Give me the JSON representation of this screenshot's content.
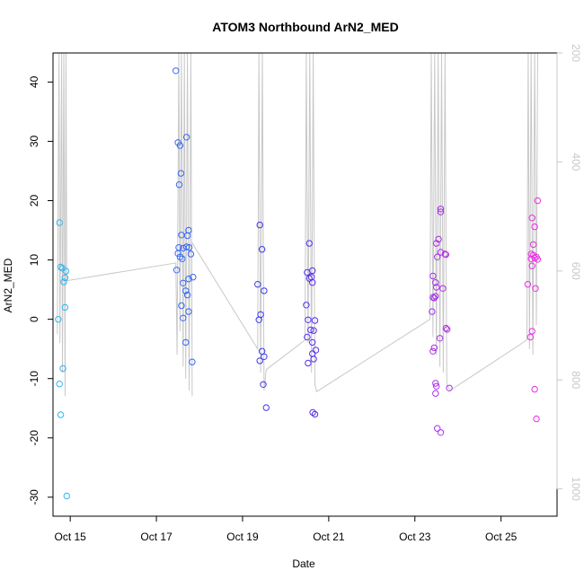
{
  "chart_data": {
    "type": "scatter",
    "title": "ATOM3 Northbound ArN2_MED",
    "xlabel": "Date",
    "ylabel": "ArN2_MED",
    "x_ticks": [
      "Oct 15",
      "Oct 17",
      "Oct 19",
      "Oct 21",
      "Oct 23",
      "Oct 25"
    ],
    "y_ticks": [
      "-30",
      "-20",
      "-10",
      "0",
      "10",
      "20",
      "30",
      "40"
    ],
    "y2_ticks": [
      "200",
      "400",
      "600",
      "800",
      "1000"
    ],
    "xlim_days": [
      14.6,
      26.3
    ],
    "ylim": [
      -33.2,
      44.9
    ],
    "y2lim": [
      1050,
      200
    ],
    "grid": false,
    "secondary_series_color": "#c8c8c8",
    "point_color_start": "#2fb8f2",
    "point_color_mid": "#3f2ff0",
    "point_color_end": "#ef2fe6",
    "points": [
      [
        14.75,
        16.3
      ],
      [
        14.78,
        8.8
      ],
      [
        14.82,
        8.6
      ],
      [
        14.85,
        6.3
      ],
      [
        14.88,
        7.0
      ],
      [
        14.9,
        8.1
      ],
      [
        14.88,
        2.0
      ],
      [
        14.72,
        0.0
      ],
      [
        14.75,
        -10.9
      ],
      [
        14.83,
        -8.3
      ],
      [
        14.78,
        -16.1
      ],
      [
        14.92,
        -29.8
      ],
      [
        17.45,
        41.9
      ],
      [
        17.5,
        29.8
      ],
      [
        17.55,
        29.3
      ],
      [
        17.7,
        30.7
      ],
      [
        17.57,
        24.6
      ],
      [
        17.53,
        22.7
      ],
      [
        17.58,
        14.2
      ],
      [
        17.75,
        15.0
      ],
      [
        17.72,
        14.1
      ],
      [
        17.52,
        12.1
      ],
      [
        17.62,
        12.0
      ],
      [
        17.7,
        12.2
      ],
      [
        17.76,
        12.1
      ],
      [
        17.5,
        11.1
      ],
      [
        17.55,
        10.5
      ],
      [
        17.6,
        10.2
      ],
      [
        17.8,
        11.0
      ],
      [
        17.47,
        8.3
      ],
      [
        17.85,
        7.1
      ],
      [
        17.75,
        6.8
      ],
      [
        17.62,
        6.1
      ],
      [
        17.68,
        4.8
      ],
      [
        17.72,
        4.1
      ],
      [
        17.58,
        2.3
      ],
      [
        17.75,
        1.3
      ],
      [
        17.62,
        0.2
      ],
      [
        17.68,
        -3.9
      ],
      [
        17.83,
        -7.2
      ],
      [
        19.4,
        15.9
      ],
      [
        19.45,
        11.8
      ],
      [
        19.35,
        5.9
      ],
      [
        19.5,
        4.8
      ],
      [
        19.42,
        0.8
      ],
      [
        19.38,
        -0.1
      ],
      [
        19.45,
        -5.4
      ],
      [
        19.5,
        -6.3
      ],
      [
        19.4,
        -7.0
      ],
      [
        19.48,
        -11.0
      ],
      [
        19.55,
        -14.9
      ],
      [
        20.55,
        12.8
      ],
      [
        20.5,
        7.9
      ],
      [
        20.62,
        8.2
      ],
      [
        20.6,
        7.1
      ],
      [
        20.55,
        6.9
      ],
      [
        20.62,
        6.2
      ],
      [
        20.48,
        2.4
      ],
      [
        20.52,
        -0.1
      ],
      [
        20.68,
        -0.2
      ],
      [
        20.58,
        -1.8
      ],
      [
        20.65,
        -1.9
      ],
      [
        20.62,
        -3.9
      ],
      [
        20.5,
        -3.0
      ],
      [
        20.7,
        -5.2
      ],
      [
        20.62,
        -5.8
      ],
      [
        20.65,
        -6.7
      ],
      [
        20.52,
        -7.4
      ],
      [
        20.63,
        -15.7
      ],
      [
        20.68,
        -16.0
      ],
      [
        23.6,
        18.6
      ],
      [
        23.6,
        18.1
      ],
      [
        23.55,
        13.5
      ],
      [
        23.5,
        12.8
      ],
      [
        23.6,
        11.3
      ],
      [
        23.7,
        11.0
      ],
      [
        23.72,
        10.9
      ],
      [
        23.52,
        10.5
      ],
      [
        23.42,
        7.3
      ],
      [
        23.48,
        6.2
      ],
      [
        23.5,
        5.4
      ],
      [
        23.65,
        5.2
      ],
      [
        23.45,
        3.6
      ],
      [
        23.42,
        3.7
      ],
      [
        23.48,
        3.9
      ],
      [
        23.4,
        1.3
      ],
      [
        23.72,
        -1.5
      ],
      [
        23.75,
        -1.7
      ],
      [
        23.58,
        -3.2
      ],
      [
        23.45,
        -4.8
      ],
      [
        23.42,
        -5.4
      ],
      [
        23.48,
        -10.8
      ],
      [
        23.5,
        -11.3
      ],
      [
        23.8,
        -11.6
      ],
      [
        23.48,
        -12.5
      ],
      [
        23.52,
        -18.4
      ],
      [
        23.6,
        -19.1
      ],
      [
        25.85,
        20.0
      ],
      [
        25.72,
        17.1
      ],
      [
        25.78,
        15.6
      ],
      [
        25.75,
        12.6
      ],
      [
        25.7,
        11.0
      ],
      [
        25.75,
        10.8
      ],
      [
        25.82,
        10.5
      ],
      [
        25.78,
        10.3
      ],
      [
        25.7,
        10.2
      ],
      [
        25.85,
        10.1
      ],
      [
        25.72,
        9.0
      ],
      [
        25.62,
        5.9
      ],
      [
        25.8,
        5.2
      ],
      [
        25.72,
        -2.0
      ],
      [
        25.68,
        -3.0
      ],
      [
        25.78,
        -11.8
      ],
      [
        25.82,
        -16.8
      ]
    ],
    "line": [
      [
        14.7,
        -2.5
      ],
      [
        14.74,
        44.9
      ],
      [
        14.76,
        -4
      ],
      [
        14.8,
        44.9
      ],
      [
        14.82,
        -9
      ],
      [
        14.85,
        44.9
      ],
      [
        14.88,
        -13
      ],
      [
        14.9,
        44.9
      ],
      [
        14.92,
        6.5
      ],
      [
        17.45,
        9.5
      ],
      [
        17.48,
        -6
      ],
      [
        17.52,
        44.9
      ],
      [
        17.55,
        -2
      ],
      [
        17.58,
        44.9
      ],
      [
        17.62,
        -8
      ],
      [
        17.65,
        44.9
      ],
      [
        17.68,
        -10
      ],
      [
        17.72,
        44.9
      ],
      [
        17.76,
        -12
      ],
      [
        17.8,
        44.9
      ],
      [
        17.83,
        -13
      ],
      [
        17.82,
        13
      ],
      [
        19.35,
        -5
      ],
      [
        19.38,
        44.9
      ],
      [
        19.42,
        -9
      ],
      [
        19.46,
        44.9
      ],
      [
        19.5,
        -12
      ],
      [
        19.55,
        -8.5
      ],
      [
        20.45,
        -3.5
      ],
      [
        20.48,
        44.9
      ],
      [
        20.52,
        -4
      ],
      [
        20.56,
        44.9
      ],
      [
        20.6,
        -9
      ],
      [
        20.64,
        44.9
      ],
      [
        20.68,
        -11
      ],
      [
        20.72,
        -12.2
      ],
      [
        23.35,
        0
      ],
      [
        23.38,
        44.9
      ],
      [
        23.42,
        -3
      ],
      [
        23.46,
        44.9
      ],
      [
        23.5,
        -6
      ],
      [
        23.54,
        44.9
      ],
      [
        23.58,
        -8
      ],
      [
        23.62,
        44.9
      ],
      [
        23.66,
        -9
      ],
      [
        23.7,
        44.9
      ],
      [
        23.74,
        -11
      ],
      [
        23.82,
        -12
      ],
      [
        25.6,
        -3.5
      ],
      [
        25.63,
        44.9
      ],
      [
        25.66,
        -5
      ],
      [
        25.7,
        44.9
      ],
      [
        25.74,
        -6
      ],
      [
        25.78,
        44.9
      ],
      [
        25.82,
        -1
      ],
      [
        25.85,
        44.9
      ]
    ]
  }
}
